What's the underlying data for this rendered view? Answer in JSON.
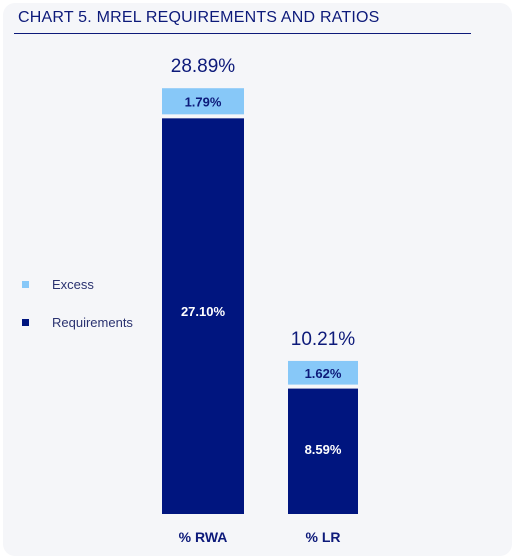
{
  "title": "CHART 5. MREL REQUIREMENTS AND RATIOS",
  "colors": {
    "requirements": "#00157f",
    "excess": "#87c8f8",
    "title": "#0d1a7a",
    "panel": "#f5f6f9"
  },
  "legend": [
    {
      "label": "Excess",
      "color": "#87c8f8"
    },
    {
      "label": "Requirements",
      "color": "#00157f"
    }
  ],
  "chart_data": {
    "type": "bar",
    "stacked": true,
    "categories": [
      "% RWA",
      "% LR"
    ],
    "series": [
      {
        "name": "Requirements",
        "values": [
          27.1,
          8.59
        ],
        "labels": [
          "27.10%",
          "8.59%"
        ]
      },
      {
        "name": "Excess",
        "values": [
          1.79,
          1.62
        ],
        "labels": [
          "1.79%",
          "1.62%"
        ]
      }
    ],
    "totals": [
      28.89,
      10.21
    ],
    "total_labels": [
      "28.89%",
      "10.21%"
    ],
    "legend_position": "left",
    "grid": false
  }
}
